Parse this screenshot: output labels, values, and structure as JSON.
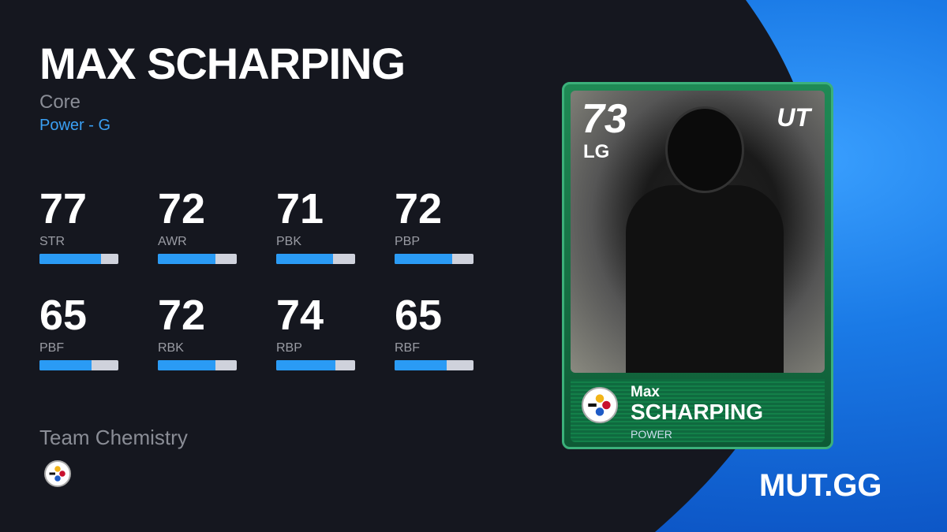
{
  "player": {
    "name": "MAX SCHARPING",
    "program": "Core",
    "archetype": "Power - G"
  },
  "stats": [
    {
      "label": "STR",
      "value": 77
    },
    {
      "label": "AWR",
      "value": 72
    },
    {
      "label": "PBK",
      "value": 71
    },
    {
      "label": "PBP",
      "value": 72
    },
    {
      "label": "PBF",
      "value": 65
    },
    {
      "label": "RBK",
      "value": 72
    },
    {
      "label": "RBP",
      "value": 74
    },
    {
      "label": "RBF",
      "value": 65
    }
  ],
  "team_chemistry": {
    "label": "Team Chemistry",
    "team_icon": "steelers-logo-icon"
  },
  "card": {
    "overall": "73",
    "position": "LG",
    "program_logo": "UT",
    "first_name": "Max",
    "last_name": "SCHARPING",
    "archetype": "POWER",
    "team_icon": "steelers-logo-icon"
  },
  "brand": "MUT.GG",
  "colors": {
    "accent": "#3aa0f5",
    "bar_fill": "#2a9bf5",
    "card_green": "#1f8a55",
    "background": "#15171f"
  }
}
